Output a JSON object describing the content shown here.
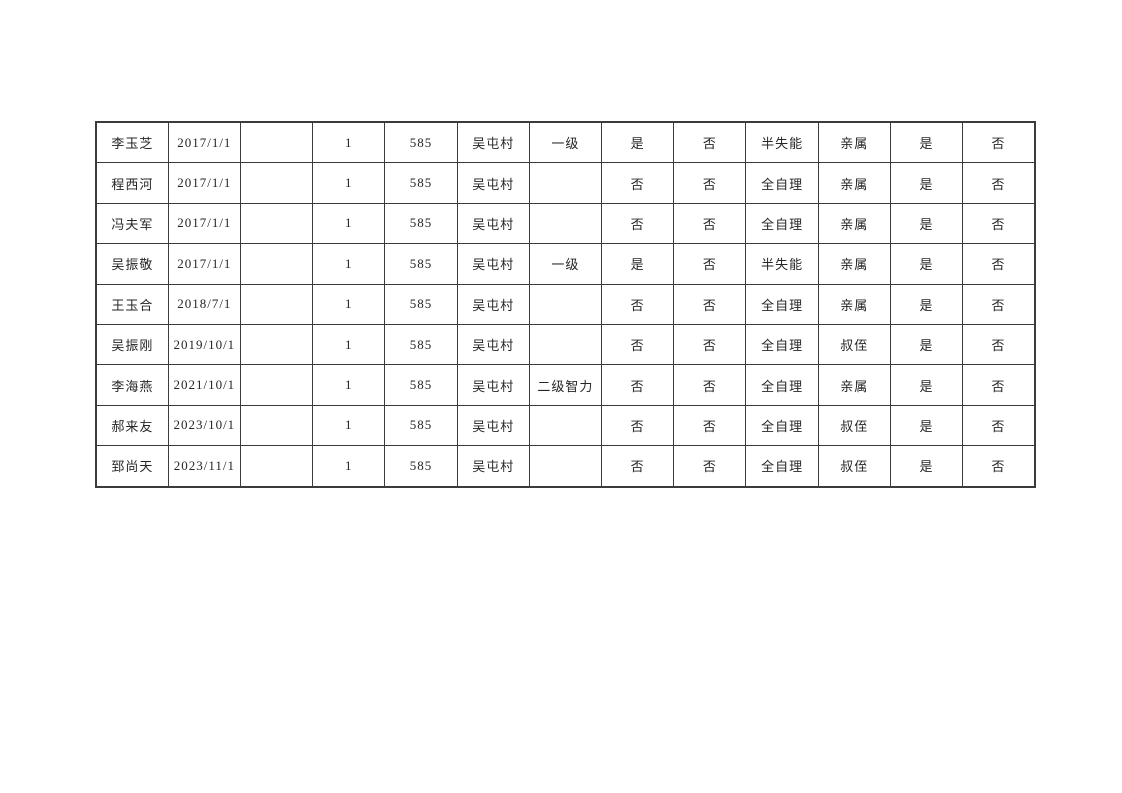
{
  "page": {
    "background_color": "#ffffff",
    "text_color": "#262626",
    "table_border_color": "#3b3b3b"
  },
  "table": {
    "column_count": 13,
    "row_count": 9,
    "rows": [
      [
        "李玉芝",
        "2017/1/1",
        "",
        "1",
        "585",
        "吴屯村",
        "一级",
        "是",
        "否",
        "半失能",
        "亲属",
        "是",
        "否"
      ],
      [
        "程西河",
        "2017/1/1",
        "",
        "1",
        "585",
        "吴屯村",
        "",
        "否",
        "否",
        "全自理",
        "亲属",
        "是",
        "否"
      ],
      [
        "冯夫军",
        "2017/1/1",
        "",
        "1",
        "585",
        "吴屯村",
        "",
        "否",
        "否",
        "全自理",
        "亲属",
        "是",
        "否"
      ],
      [
        "吴振敬",
        "2017/1/1",
        "",
        "1",
        "585",
        "吴屯村",
        "一级",
        "是",
        "否",
        "半失能",
        "亲属",
        "是",
        "否"
      ],
      [
        "王玉合",
        "2018/7/1",
        "",
        "1",
        "585",
        "吴屯村",
        "",
        "否",
        "否",
        "全自理",
        "亲属",
        "是",
        "否"
      ],
      [
        "吴振刚",
        "2019/10/1",
        "",
        "1",
        "585",
        "吴屯村",
        "",
        "否",
        "否",
        "全自理",
        "叔侄",
        "是",
        "否"
      ],
      [
        "李海燕",
        "2021/10/1",
        "",
        "1",
        "585",
        "吴屯村",
        "二级智力",
        "否",
        "否",
        "全自理",
        "亲属",
        "是",
        "否"
      ],
      [
        "郝来友",
        "2023/10/1",
        "",
        "1",
        "585",
        "吴屯村",
        "",
        "否",
        "否",
        "全自理",
        "叔侄",
        "是",
        "否"
      ],
      [
        "郅尚天",
        "2023/11/1",
        "",
        "1",
        "585",
        "吴屯村",
        "",
        "否",
        "否",
        "全自理",
        "叔侄",
        "是",
        "否"
      ]
    ]
  }
}
